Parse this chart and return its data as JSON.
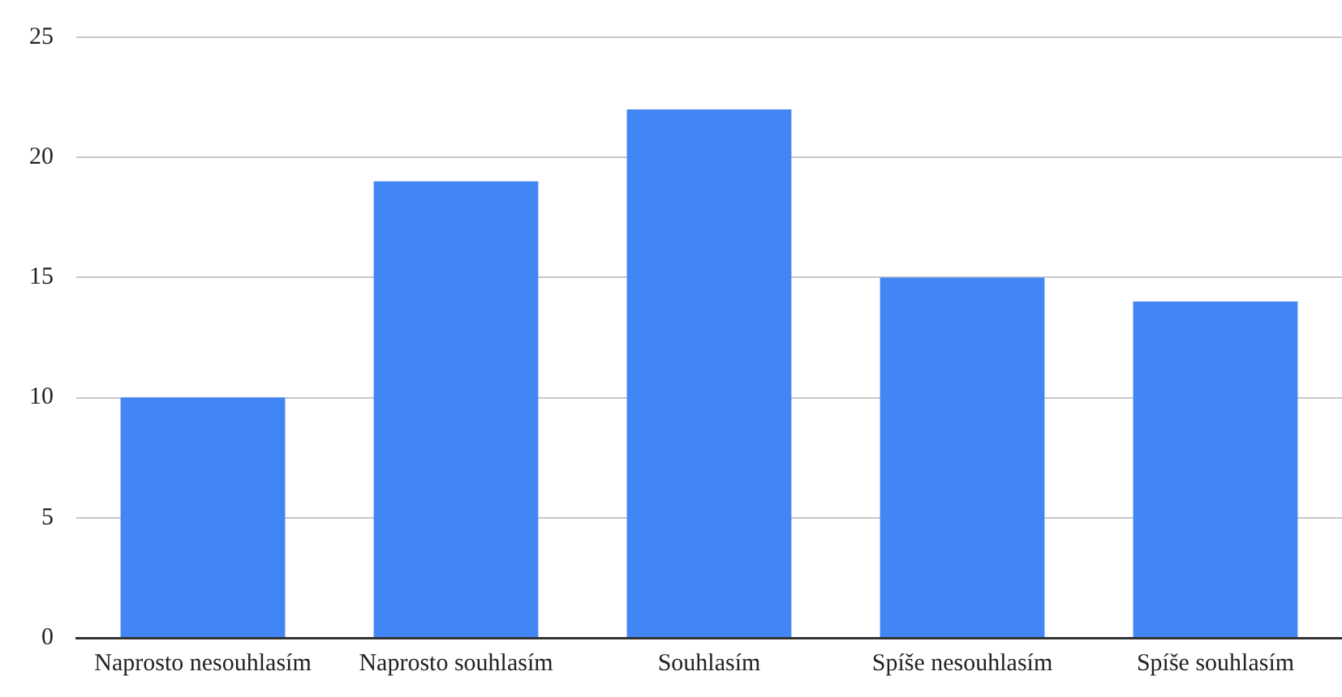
{
  "chart_data": {
    "type": "bar",
    "categories": [
      "Naprosto nesouhlasím",
      "Naprosto souhlasím",
      "Souhlasím",
      "Spíše nesouhlasím",
      "Spíše souhlasím"
    ],
    "values": [
      10,
      19,
      22,
      15,
      14
    ],
    "color": "#4285f4",
    "ylim": [
      0,
      25
    ],
    "yticks": [
      0,
      5,
      10,
      15,
      20,
      25
    ],
    "grid": "y",
    "legend": false
  }
}
